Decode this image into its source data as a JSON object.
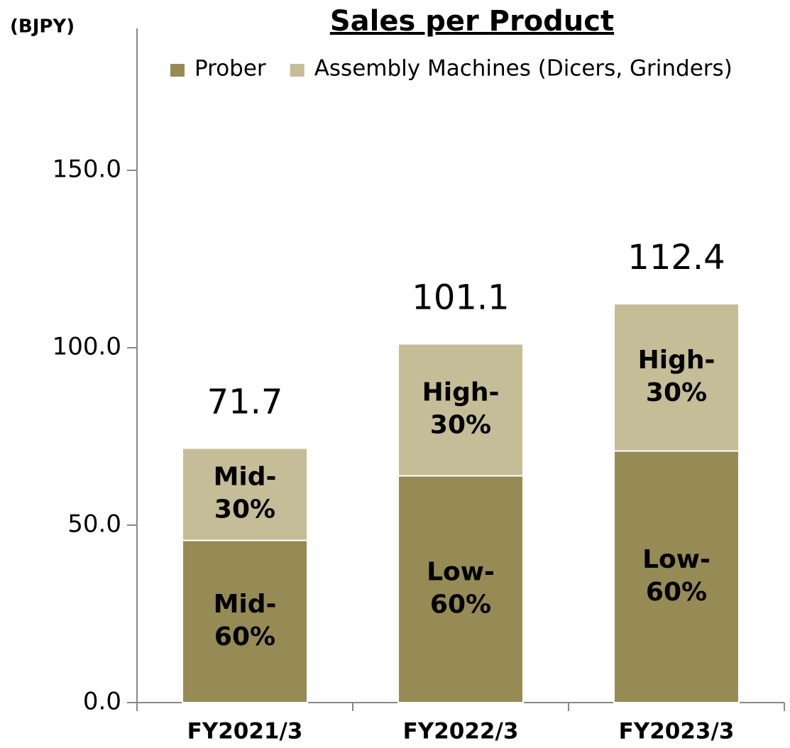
{
  "chart_data": {
    "type": "stacked_bar",
    "title": "Sales per Product",
    "y_unit": "(BJPY)",
    "categories": [
      "FY2021/3",
      "FY2022/3",
      "FY2023/3"
    ],
    "series": [
      {
        "name": "Prober",
        "color": "#968b55",
        "values": [
          45.7,
          63.9,
          70.9
        ],
        "segment_labels": [
          [
            "Mid-",
            "60%"
          ],
          [
            "Low-",
            "60%"
          ],
          [
            "Low-",
            "60%"
          ]
        ]
      },
      {
        "name": "Assembly Machines (Dicers, Grinders)",
        "color": "#c5bd98",
        "values": [
          26.0,
          37.2,
          41.5
        ],
        "segment_labels": [
          [
            "Mid-",
            "30%"
          ],
          [
            "High-",
            "30%"
          ],
          [
            "High-",
            "30%"
          ]
        ]
      }
    ],
    "totals": [
      71.7,
      101.1,
      112.4
    ],
    "ylim": [
      0,
      190
    ],
    "yticks": [
      {
        "value": 0,
        "label": "0.0"
      },
      {
        "value": 50,
        "label": "50.0"
      },
      {
        "value": 100,
        "label": "100.0"
      },
      {
        "value": 150,
        "label": "150.0"
      }
    ],
    "grid": false
  }
}
